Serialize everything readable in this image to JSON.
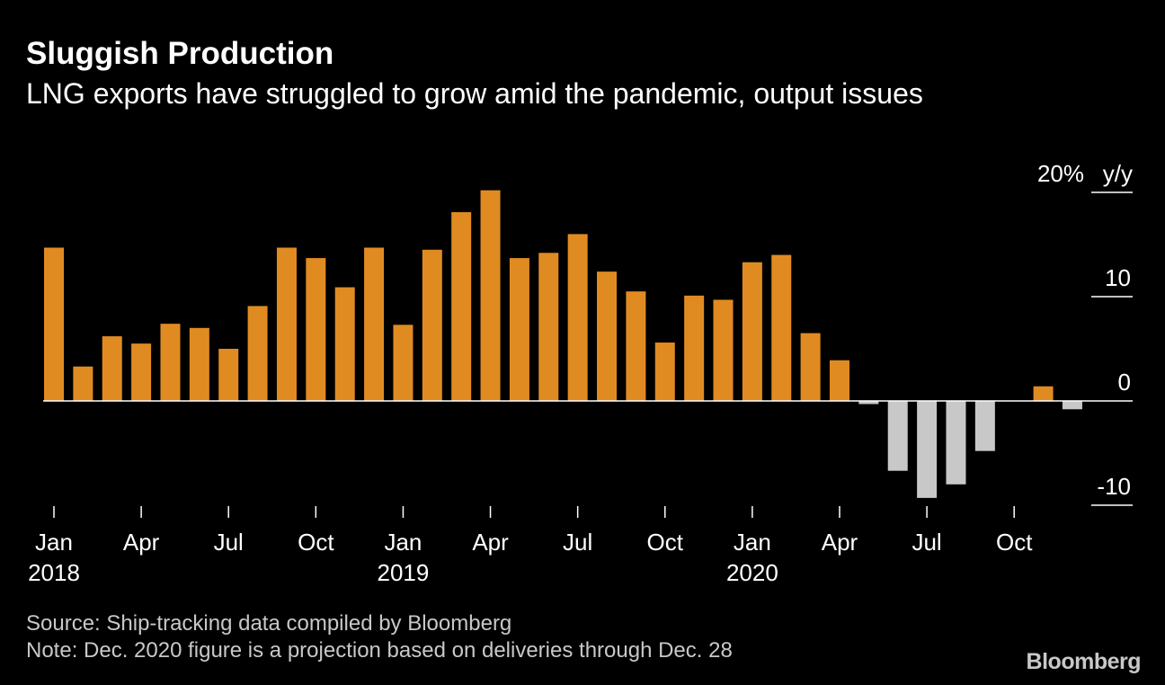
{
  "header": {
    "title": "Sluggish Production",
    "subtitle": "LNG exports have struggled to grow amid the pandemic, output issues"
  },
  "footer": {
    "source": "Source: Ship-tracking data compiled by Bloomberg",
    "note": "Note: Dec. 2020 figure is a projection based on deliveries through Dec. 28",
    "logo": "Bloomberg"
  },
  "colors": {
    "positive": "#e08b22",
    "negative": "#c8c8c8",
    "background": "#000000",
    "text": "#ffffff",
    "axis": "#ffffff"
  },
  "chart_data": {
    "type": "bar",
    "ylabel": "y/y",
    "ylim": [
      -10,
      20
    ],
    "y_ticks": [
      {
        "value": 20,
        "label": "20%"
      },
      {
        "value": 10,
        "label": "10"
      },
      {
        "value": 0,
        "label": "0"
      },
      {
        "value": -10,
        "label": "-10"
      }
    ],
    "categories": [
      "2018-01",
      "2018-02",
      "2018-03",
      "2018-04",
      "2018-05",
      "2018-06",
      "2018-07",
      "2018-08",
      "2018-09",
      "2018-10",
      "2018-11",
      "2018-12",
      "2019-01",
      "2019-02",
      "2019-03",
      "2019-04",
      "2019-05",
      "2019-06",
      "2019-07",
      "2019-08",
      "2019-09",
      "2019-10",
      "2019-11",
      "2019-12",
      "2020-01",
      "2020-02",
      "2020-03",
      "2020-04",
      "2020-05",
      "2020-06",
      "2020-07",
      "2020-08",
      "2020-09",
      "2020-10",
      "2020-11",
      "2020-12"
    ],
    "values": [
      14.7,
      3.3,
      6.2,
      5.5,
      7.4,
      7.0,
      5.0,
      9.1,
      14.7,
      13.7,
      10.9,
      14.7,
      7.3,
      14.5,
      18.1,
      20.2,
      13.7,
      14.2,
      16.0,
      12.4,
      10.5,
      5.6,
      10.1,
      9.7,
      13.3,
      14.0,
      6.5,
      3.9,
      -0.3,
      -6.7,
      -9.3,
      -8.0,
      -4.8,
      0.0,
      1.4,
      -0.8
    ],
    "x_tick_labels": [
      {
        "index": 0,
        "month": "Jan",
        "year": "2018"
      },
      {
        "index": 3,
        "month": "Apr",
        "year": ""
      },
      {
        "index": 6,
        "month": "Jul",
        "year": ""
      },
      {
        "index": 9,
        "month": "Oct",
        "year": ""
      },
      {
        "index": 12,
        "month": "Jan",
        "year": "2019"
      },
      {
        "index": 15,
        "month": "Apr",
        "year": ""
      },
      {
        "index": 18,
        "month": "Jul",
        "year": ""
      },
      {
        "index": 21,
        "month": "Oct",
        "year": ""
      },
      {
        "index": 24,
        "month": "Jan",
        "year": "2020"
      },
      {
        "index": 27,
        "month": "Apr",
        "year": ""
      },
      {
        "index": 30,
        "month": "Jul",
        "year": ""
      },
      {
        "index": 33,
        "month": "Oct",
        "year": ""
      }
    ],
    "grid": false,
    "legend": "none"
  }
}
